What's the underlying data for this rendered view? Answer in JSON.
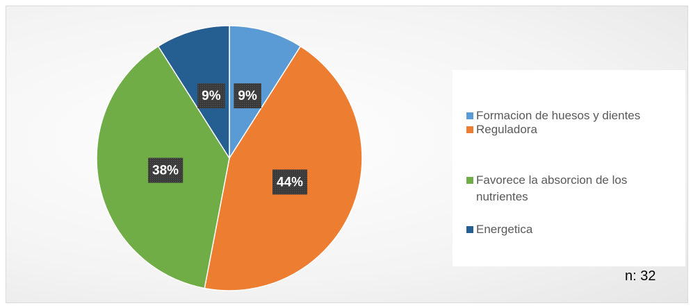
{
  "chart_data": {
    "type": "pie",
    "categories": [
      "Formacion de huesos y dientes",
      "Reguladora",
      "Favorece la absorcion de los nutrientes",
      "Energetica"
    ],
    "values": [
      9,
      44,
      38,
      9
    ],
    "value_labels": [
      "9%",
      "44%",
      "38%",
      "9%"
    ],
    "colors": [
      "#5b9bd5",
      "#ed7d31",
      "#70ad47",
      "#255e91"
    ],
    "legend": "right",
    "annotation": "n: 32"
  }
}
